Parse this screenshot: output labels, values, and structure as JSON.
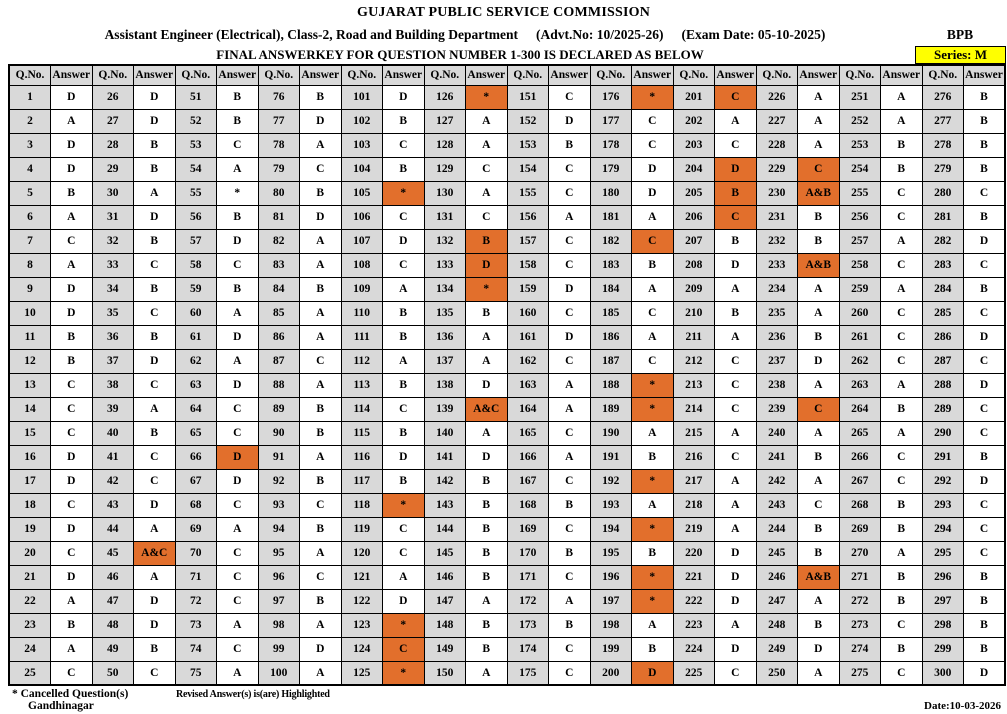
{
  "header": {
    "title": "GUJARAT PUBLIC SERVICE COMMISSION",
    "department": "Assistant Engineer (Electrical), Class-2, Road and Building Department",
    "advt_no": "(Advt.No: 10/2025-26)",
    "exam_date": "(Exam Date: 05-10-2025)",
    "paper_code": "BPB",
    "declaration": "FINAL ANSWERKEY FOR QUESTION NUMBER 1-300 IS DECLARED AS BELOW",
    "series_label": "Series: M"
  },
  "table": {
    "qno_header": "Q.No.",
    "answer_header": "Answer",
    "pairs": 12,
    "rows": 25,
    "answers": [
      "D",
      "A",
      "D",
      "D",
      "B",
      "A",
      "C",
      "A",
      "D",
      "D",
      "B",
      "B",
      "C",
      "C",
      "C",
      "D",
      "D",
      "C",
      "D",
      "C",
      "D",
      "A",
      "B",
      "A",
      "C",
      "D",
      "D",
      "B",
      "B",
      "A",
      "D",
      "B",
      "C",
      "B",
      "C",
      "B",
      "D",
      "C",
      "A",
      "B",
      "C",
      "C",
      "D",
      "A",
      "A&C",
      "A",
      "D",
      "D",
      "B",
      "C",
      "B",
      "B",
      "C",
      "A",
      "*",
      "B",
      "D",
      "C",
      "B",
      "A",
      "D",
      "A",
      "D",
      "C",
      "C",
      "D",
      "D",
      "C",
      "A",
      "C",
      "C",
      "C",
      "A",
      "C",
      "A",
      "B",
      "D",
      "A",
      "C",
      "B",
      "D",
      "A",
      "A",
      "B",
      "A",
      "A",
      "C",
      "A",
      "B",
      "B",
      "A",
      "B",
      "C",
      "B",
      "A",
      "C",
      "B",
      "A",
      "D",
      "A",
      "D",
      "B",
      "C",
      "B",
      "*",
      "C",
      "D",
      "C",
      "A",
      "B",
      "B",
      "A",
      "B",
      "C",
      "B",
      "D",
      "B",
      "*",
      "C",
      "C",
      "A",
      "D",
      "*",
      "C",
      "*",
      "*",
      "A",
      "A",
      "C",
      "A",
      "C",
      "B",
      "D",
      "*",
      "B",
      "A",
      "A",
      "D",
      "A&C",
      "A",
      "D",
      "B",
      "B",
      "B",
      "B",
      "B",
      "A",
      "B",
      "B",
      "A",
      "C",
      "D",
      "B",
      "C",
      "C",
      "A",
      "C",
      "C",
      "D",
      "C",
      "D",
      "C",
      "A",
      "A",
      "C",
      "A",
      "C",
      "B",
      "C",
      "B",
      "C",
      "A",
      "B",
      "C",
      "C",
      "*",
      "C",
      "C",
      "D",
      "D",
      "A",
      "C",
      "B",
      "A",
      "C",
      "A",
      "C",
      "*",
      "*",
      "A",
      "B",
      "*",
      "A",
      "*",
      "B",
      "*",
      "*",
      "A",
      "B",
      "D",
      "C",
      "A",
      "C",
      "D",
      "B",
      "C",
      "B",
      "D",
      "A",
      "B",
      "A",
      "C",
      "C",
      "C",
      "A",
      "C",
      "A",
      "A",
      "A",
      "D",
      "D",
      "D",
      "A",
      "D",
      "C",
      "A",
      "A",
      "A",
      "C",
      "A&B",
      "B",
      "B",
      "A&B",
      "A",
      "A",
      "B",
      "D",
      "A",
      "C",
      "A",
      "B",
      "A",
      "C",
      "B",
      "B",
      "A&B",
      "A",
      "B",
      "D",
      "A",
      "A",
      "A",
      "B",
      "B",
      "C",
      "C",
      "A",
      "C",
      "A",
      "C",
      "C",
      "C",
      "A",
      "B",
      "A",
      "C",
      "C",
      "B",
      "B",
      "A",
      "B",
      "B",
      "C",
      "B",
      "C",
      "B",
      "B",
      "B",
      "B",
      "C",
      "B",
      "D",
      "C",
      "B",
      "C",
      "D",
      "C",
      "D",
      "C",
      "C",
      "B",
      "D",
      "C",
      "C",
      "C",
      "B",
      "B",
      "B",
      "B",
      "D"
    ],
    "highlighted": [
      45,
      66,
      105,
      118,
      123,
      124,
      125,
      126,
      132,
      133,
      134,
      139,
      176,
      182,
      188,
      189,
      192,
      194,
      196,
      197,
      200,
      201,
      204,
      205,
      206,
      229,
      230,
      233,
      239,
      246
    ]
  },
  "footer": {
    "cancelled_note": "* Cancelled Question(s)",
    "revised_note": "Revised Answer(s) is(are) Highlighted",
    "place": "Gandhinagar",
    "date": "Date:10-03-2026"
  },
  "colors": {
    "highlight_orange": "#E26F2C",
    "header_grey": "#D9D9D9",
    "series_yellow": "#FFFF00"
  }
}
